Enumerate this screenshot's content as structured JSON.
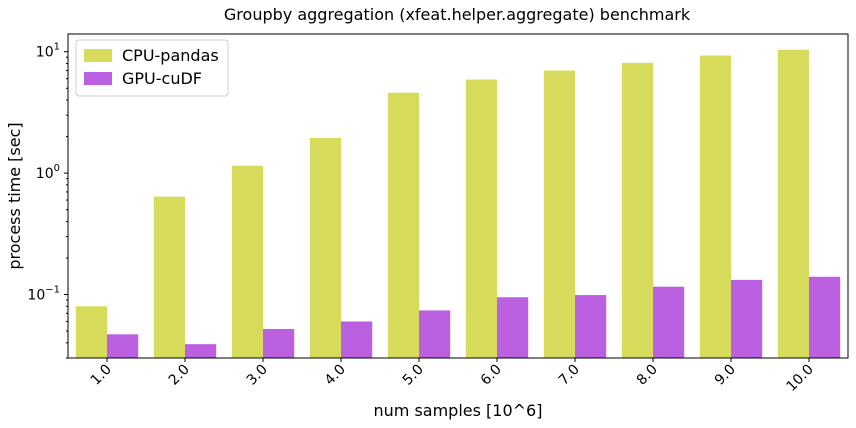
{
  "chart_data": {
    "type": "bar",
    "title": "Groupby aggregation (xfeat.helper.aggregate) benchmark",
    "xlabel": "num samples [10^6]",
    "ylabel": "process time [sec]",
    "yscale": "log",
    "ylim": [
      0.03,
      14
    ],
    "yticks": [
      {
        "value": 0.1,
        "base": "10",
        "exp": "−1"
      },
      {
        "value": 1,
        "base": "10",
        "exp": "0"
      },
      {
        "value": 10,
        "base": "10",
        "exp": "1"
      }
    ],
    "categories": [
      "1.0",
      "2.0",
      "3.0",
      "4.0",
      "5.0",
      "6.0",
      "7.0",
      "8.0",
      "9.0",
      "10.0"
    ],
    "series": [
      {
        "name": "CPU-pandas",
        "color": "#d6db5c",
        "values": [
          0.08,
          0.64,
          1.15,
          1.95,
          4.6,
          5.9,
          7.0,
          8.1,
          9.3,
          10.4
        ]
      },
      {
        "name": "GPU-cuDF",
        "color": "#bb60e0",
        "values": [
          0.047,
          0.039,
          0.052,
          0.06,
          0.074,
          0.095,
          0.099,
          0.116,
          0.132,
          0.14
        ]
      }
    ],
    "legend_position": "top-left",
    "grid": false
  }
}
